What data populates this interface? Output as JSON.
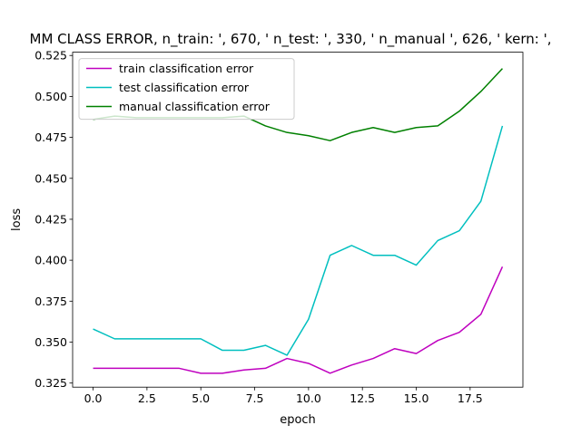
{
  "chart_data": {
    "type": "line",
    "title": "MM CLASS ERROR, n_train: ', 670, ' n_test: ', 330, ' n_manual ', 626, ' kern: ',",
    "xlabel": "epoch",
    "ylabel": "loss",
    "xlim": [
      -0.95,
      19.95
    ],
    "ylim": [
      0.3225,
      0.527
    ],
    "xticks": [
      0.0,
      2.5,
      5.0,
      7.5,
      10.0,
      12.5,
      15.0,
      17.5
    ],
    "xtick_labels": [
      "0.0",
      "2.5",
      "5.0",
      "7.5",
      "10.0",
      "12.5",
      "15.0",
      "17.5"
    ],
    "yticks": [
      0.325,
      0.35,
      0.375,
      0.4,
      0.425,
      0.45,
      0.475,
      0.5,
      0.525
    ],
    "ytick_labels": [
      "0.325",
      "0.350",
      "0.375",
      "0.400",
      "0.425",
      "0.450",
      "0.475",
      "0.500",
      "0.525"
    ],
    "grid": false,
    "legend_position": "upper-left",
    "x": [
      0,
      1,
      2,
      3,
      4,
      5,
      6,
      7,
      8,
      9,
      10,
      11,
      12,
      13,
      14,
      15,
      16,
      17,
      18,
      19
    ],
    "series": [
      {
        "name": "train classification error",
        "color": "#bf00bf",
        "values": [
          0.334,
          0.334,
          0.334,
          0.334,
          0.334,
          0.331,
          0.331,
          0.333,
          0.334,
          0.34,
          0.337,
          0.331,
          0.336,
          0.34,
          0.346,
          0.343,
          0.351,
          0.356,
          0.367,
          0.396
        ]
      },
      {
        "name": "test classification error",
        "color": "#00bfbf",
        "values": [
          0.358,
          0.352,
          0.352,
          0.352,
          0.352,
          0.352,
          0.345,
          0.345,
          0.348,
          0.342,
          0.364,
          0.403,
          0.409,
          0.403,
          0.403,
          0.397,
          0.412,
          0.418,
          0.436,
          0.482
        ]
      },
      {
        "name": "manual classification error",
        "color": "#008000",
        "values": [
          0.486,
          0.488,
          0.487,
          0.487,
          0.487,
          0.487,
          0.487,
          0.488,
          0.482,
          0.478,
          0.476,
          0.473,
          0.478,
          0.481,
          0.478,
          0.481,
          0.482,
          0.491,
          0.503,
          0.517
        ]
      }
    ]
  }
}
